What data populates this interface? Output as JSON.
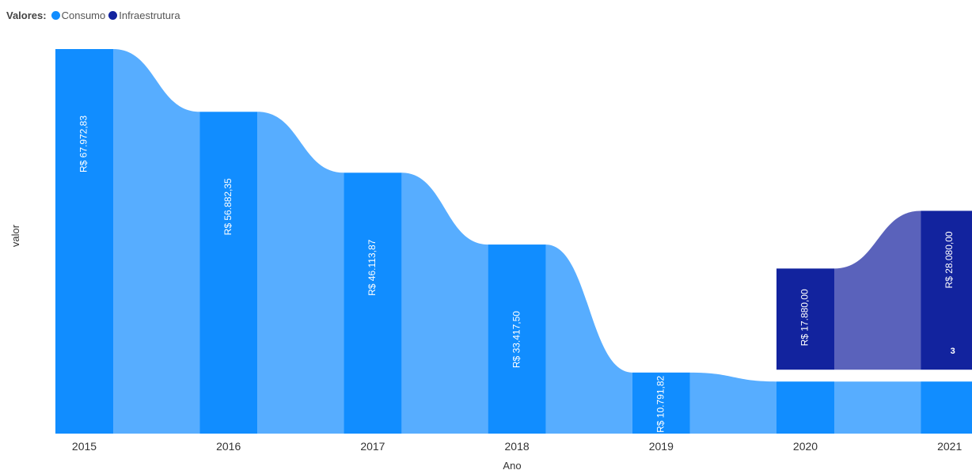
{
  "legend": {
    "title": "Valores:",
    "items": [
      {
        "label": "Consumo",
        "color": "#118DFF"
      },
      {
        "label": "Infraestrutura",
        "color": "#12239E"
      }
    ]
  },
  "chart_data": {
    "type": "ribbon",
    "xlabel": "Ano",
    "ylabel": "valor",
    "categories": [
      "2015",
      "2016",
      "2017",
      "2018",
      "2019",
      "2020",
      "2021"
    ],
    "series": [
      {
        "name": "Consumo",
        "color": "#118DFF",
        "ribbon_color": "#57ADFF",
        "values": [
          67972.83,
          56882.35,
          46113.87,
          33417.5,
          10791.82,
          9200,
          9200
        ],
        "labels": [
          "R$ 67.972,83",
          "R$ 56.882,35",
          "R$ 46.113,87",
          "R$ 33.417,50",
          "R$ 10.791,82",
          "",
          ""
        ]
      },
      {
        "name": "Infraestrutura",
        "color": "#12239E",
        "ribbon_color": "#5A62BB",
        "values": [
          null,
          null,
          null,
          null,
          null,
          17880.0,
          28080.0
        ],
        "labels": [
          "",
          "",
          "",
          "",
          "",
          "R$ 17.880,00",
          "R$ 28.080,00"
        ]
      }
    ],
    "annotations": [
      {
        "category": "2021",
        "series": "Infraestrutura",
        "text": "3"
      }
    ]
  }
}
